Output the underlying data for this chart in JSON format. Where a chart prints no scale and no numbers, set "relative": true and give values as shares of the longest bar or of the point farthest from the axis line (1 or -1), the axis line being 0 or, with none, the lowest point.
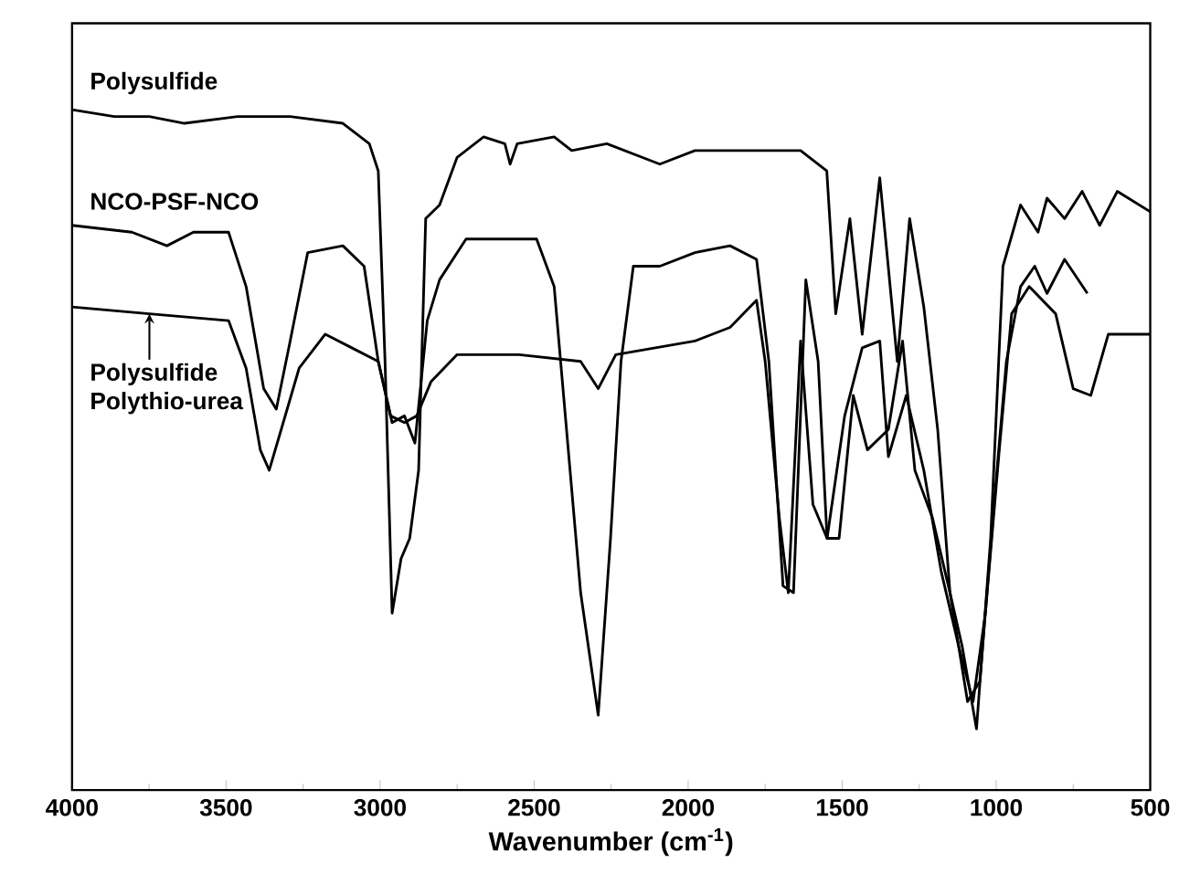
{
  "chart_data": {
    "type": "line",
    "xlabel": "Wavenumber (cm$^{-1}$)",
    "relative": true,
    "xlim": [
      4000,
      500
    ],
    "xticks": [
      4000,
      3500,
      3000,
      2500,
      2000,
      1500,
      1000,
      500
    ],
    "series": [
      {
        "name": "Polysulfide",
        "color": "#000000",
        "x": [
          4000,
          3863,
          3749,
          3635,
          3463,
          3292,
          3121,
          3035,
          3006,
          2984,
          2961,
          2932,
          2904,
          2875,
          2852,
          2807,
          2750,
          2664,
          2595,
          2578,
          2555,
          2435,
          2378,
          2264,
          2092,
          1978,
          1864,
          1635,
          1550,
          1521,
          1475,
          1435,
          1378,
          1321,
          1281,
          1235,
          1190,
          1150,
          1110,
          1064,
          1018,
          978,
          921,
          864,
          835,
          778,
          721,
          664,
          607,
          500
        ],
        "values": [
          1.0,
          0.99,
          0.99,
          0.98,
          0.99,
          0.99,
          0.98,
          0.95,
          0.91,
          0.63,
          0.26,
          0.34,
          0.37,
          0.47,
          0.84,
          0.86,
          0.93,
          0.96,
          0.95,
          0.92,
          0.95,
          0.96,
          0.94,
          0.95,
          0.92,
          0.94,
          0.94,
          0.94,
          0.91,
          0.7,
          0.84,
          0.67,
          0.9,
          0.63,
          0.84,
          0.71,
          0.53,
          0.29,
          0.21,
          0.09,
          0.37,
          0.77,
          0.86,
          0.82,
          0.87,
          0.84,
          0.88,
          0.83,
          0.88,
          0.85
        ]
      },
      {
        "name": "NCO-PSF-NCO",
        "color": "#000000",
        "x": [
          4000,
          3806,
          3692,
          3606,
          3492,
          3435,
          3378,
          3337,
          3292,
          3235,
          3121,
          3052,
          3006,
          2961,
          2921,
          2887,
          2847,
          2807,
          2721,
          2492,
          2435,
          2349,
          2292,
          2252,
          2218,
          2178,
          2092,
          1978,
          1864,
          1778,
          1738,
          1692,
          1658,
          1618,
          1578,
          1549,
          1510,
          1464,
          1418,
          1350,
          1304,
          1264,
          1207,
          1150,
          1093,
          1053,
          1007,
          967,
          921,
          875,
          835,
          778,
          704
        ],
        "values": [
          0.83,
          0.82,
          0.8,
          0.82,
          0.82,
          0.74,
          0.59,
          0.56,
          0.66,
          0.79,
          0.8,
          0.77,
          0.63,
          0.54,
          0.55,
          0.51,
          0.69,
          0.75,
          0.81,
          0.81,
          0.74,
          0.29,
          0.11,
          0.37,
          0.63,
          0.77,
          0.77,
          0.79,
          0.8,
          0.78,
          0.63,
          0.3,
          0.29,
          0.75,
          0.63,
          0.37,
          0.37,
          0.58,
          0.5,
          0.53,
          0.66,
          0.47,
          0.4,
          0.29,
          0.13,
          0.16,
          0.42,
          0.63,
          0.74,
          0.77,
          0.73,
          0.78,
          0.73
        ]
      },
      {
        "name": "Polysulfide Polythio-urea",
        "color": "#000000",
        "x": [
          4000,
          3749,
          3492,
          3435,
          3389,
          3360,
          3321,
          3263,
          3178,
          3092,
          3006,
          2966,
          2921,
          2881,
          2835,
          2750,
          2549,
          2349,
          2292,
          2235,
          1978,
          1864,
          1778,
          1750,
          1704,
          1675,
          1635,
          1595,
          1549,
          1492,
          1435,
          1378,
          1350,
          1292,
          1235,
          1178,
          1121,
          1075,
          1035,
          990,
          950,
          893,
          807,
          750,
          693,
          636,
          500
        ],
        "values": [
          0.71,
          0.7,
          0.69,
          0.62,
          0.5,
          0.47,
          0.53,
          0.62,
          0.67,
          0.65,
          0.63,
          0.55,
          0.54,
          0.55,
          0.6,
          0.64,
          0.64,
          0.63,
          0.59,
          0.64,
          0.66,
          0.68,
          0.72,
          0.63,
          0.4,
          0.29,
          0.66,
          0.42,
          0.37,
          0.55,
          0.65,
          0.66,
          0.49,
          0.58,
          0.47,
          0.32,
          0.21,
          0.13,
          0.26,
          0.5,
          0.7,
          0.74,
          0.7,
          0.59,
          0.58,
          0.67,
          0.67
        ]
      }
    ]
  }
}
